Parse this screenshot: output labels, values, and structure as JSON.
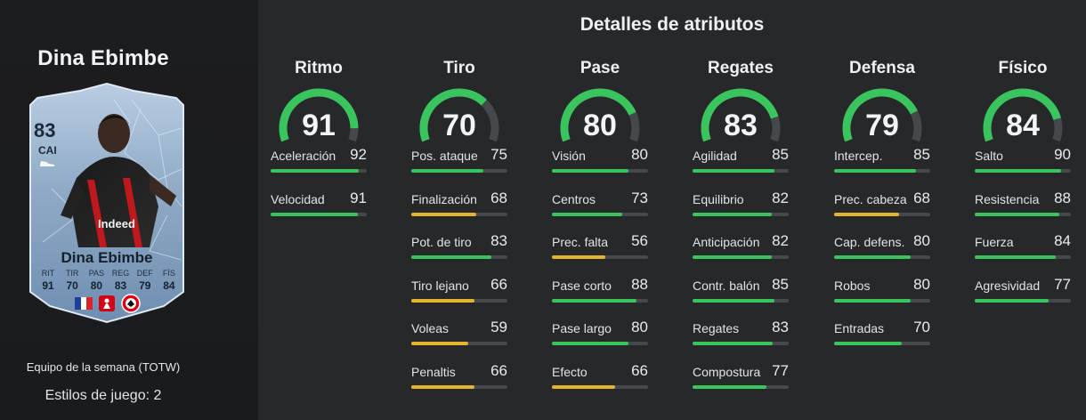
{
  "player": {
    "name": "Dina Ebimbe",
    "card_rating": "83",
    "card_position": "CAI",
    "card_name": "Dina Ebimbe",
    "card_stats": [
      {
        "label": "RIT",
        "value": "91"
      },
      {
        "label": "TIR",
        "value": "70"
      },
      {
        "label": "PAS",
        "value": "80"
      },
      {
        "label": "REG",
        "value": "83"
      },
      {
        "label": "DEF",
        "value": "79"
      },
      {
        "label": "FÍS",
        "value": "84"
      }
    ],
    "promo": "Equipo de la semana (TOTW)",
    "playstyles": "Estilos de juego: 2"
  },
  "section_title": "Detalles de atributos",
  "colors": {
    "green": "#39c45e",
    "yellow": "#e3b52c",
    "track": "#46494c"
  },
  "categories": [
    {
      "name": "Ritmo",
      "value": "91",
      "attrs": [
        {
          "name": "Aceleración",
          "value": "92"
        },
        {
          "name": "Velocidad",
          "value": "91"
        }
      ]
    },
    {
      "name": "Tiro",
      "value": "70",
      "attrs": [
        {
          "name": "Pos. ataque",
          "value": "75"
        },
        {
          "name": "Finalización",
          "value": "68"
        },
        {
          "name": "Pot. de tiro",
          "value": "83"
        },
        {
          "name": "Tiro lejano",
          "value": "66"
        },
        {
          "name": "Voleas",
          "value": "59"
        },
        {
          "name": "Penaltis",
          "value": "66"
        }
      ]
    },
    {
      "name": "Pase",
      "value": "80",
      "attrs": [
        {
          "name": "Visión",
          "value": "80"
        },
        {
          "name": "Centros",
          "value": "73"
        },
        {
          "name": "Prec. falta",
          "value": "56"
        },
        {
          "name": "Pase corto",
          "value": "88"
        },
        {
          "name": "Pase largo",
          "value": "80"
        },
        {
          "name": "Efecto",
          "value": "66"
        }
      ]
    },
    {
      "name": "Regates",
      "value": "83",
      "attrs": [
        {
          "name": "Agilidad",
          "value": "85"
        },
        {
          "name": "Equilibrio",
          "value": "82"
        },
        {
          "name": "Anticipación",
          "value": "82"
        },
        {
          "name": "Contr. balón",
          "value": "85"
        },
        {
          "name": "Regates",
          "value": "83"
        },
        {
          "name": "Compostura",
          "value": "77"
        }
      ]
    },
    {
      "name": "Defensa",
      "value": "79",
      "attrs": [
        {
          "name": "Intercep.",
          "value": "85"
        },
        {
          "name": "Prec. cabeza",
          "value": "68"
        },
        {
          "name": "Cap. defens.",
          "value": "80"
        },
        {
          "name": "Robos",
          "value": "80"
        },
        {
          "name": "Entradas",
          "value": "70"
        }
      ]
    },
    {
      "name": "Físico",
      "value": "84",
      "attrs": [
        {
          "name": "Salto",
          "value": "90"
        },
        {
          "name": "Resistencia",
          "value": "88"
        },
        {
          "name": "Fuerza",
          "value": "84"
        },
        {
          "name": "Agresividad",
          "value": "77"
        }
      ]
    }
  ]
}
